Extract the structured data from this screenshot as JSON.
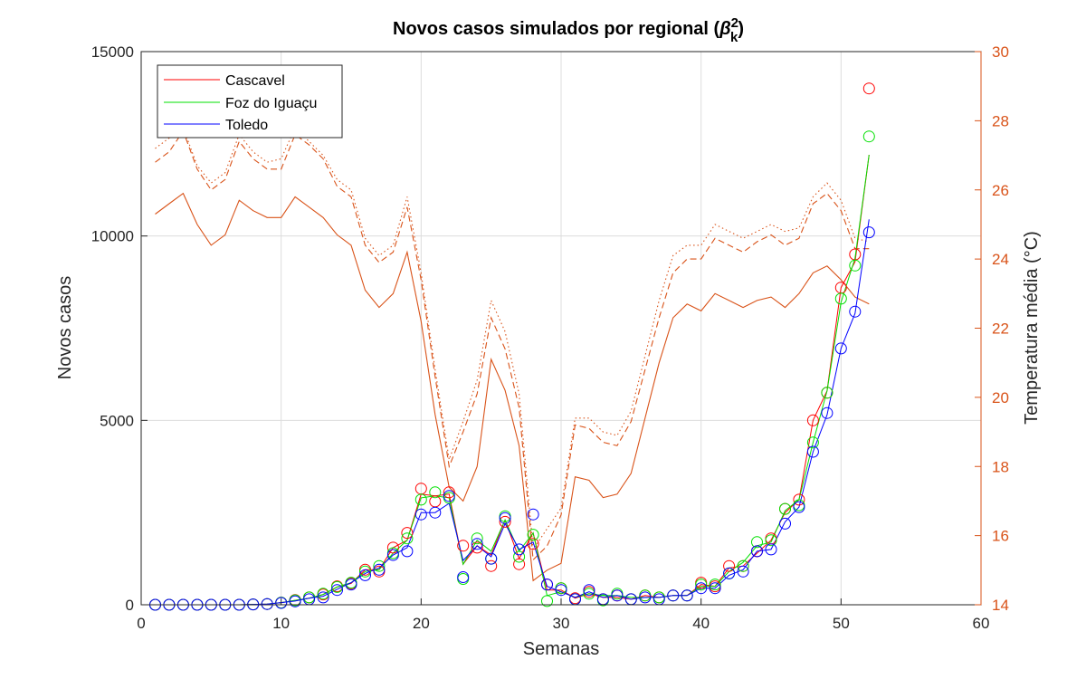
{
  "chart_data": {
    "type": "line",
    "title": "Novos casos simulados por regional (",
    "title_beta": "β",
    "title_sup": "2",
    "title_sub": "k",
    "title_end": ")",
    "xlabel": "Semanas",
    "ylabel": "Novos casos",
    "y2label": "Temperatura média (°C)",
    "xlim": [
      0,
      60
    ],
    "ylim": [
      0,
      15000
    ],
    "y2lim": [
      14,
      30
    ],
    "xticks": [
      0,
      10,
      20,
      30,
      40,
      50,
      60
    ],
    "yticks": [
      0,
      5000,
      10000,
      15000
    ],
    "y2ticks": [
      14,
      16,
      18,
      20,
      22,
      24,
      26,
      28,
      30
    ],
    "grid": true,
    "legend_position": "top-left",
    "temp_color": "#D95319",
    "weeks": [
      1,
      2,
      3,
      4,
      5,
      6,
      7,
      8,
      9,
      10,
      11,
      12,
      13,
      14,
      15,
      16,
      17,
      18,
      19,
      20,
      21,
      22,
      23,
      24,
      25,
      26,
      27,
      28,
      29,
      30,
      31,
      32,
      33,
      34,
      35,
      36,
      37,
      38,
      39,
      40,
      41,
      42,
      43,
      44,
      45,
      46,
      47,
      48,
      49,
      50,
      51,
      52
    ],
    "series": [
      {
        "name": "Cascavel",
        "color": "#ff0000",
        "values": [
          0,
          0,
          0,
          0,
          0,
          0,
          0,
          10,
          20,
          60,
          120,
          180,
          280,
          480,
          580,
          950,
          950,
          1550,
          1750,
          3000,
          2950,
          3000,
          1100,
          1600,
          1350,
          2300,
          1250,
          1950,
          400,
          400,
          180,
          300,
          200,
          200,
          150,
          250,
          200,
          250,
          250,
          550,
          500,
          1000,
          1050,
          1400,
          1750,
          2500,
          2850,
          5000,
          5800,
          8600,
          9300,
          12200
        ],
        "observed": [
          0,
          0,
          0,
          0,
          0,
          0,
          0,
          10,
          20,
          60,
          130,
          200,
          280,
          500,
          580,
          950,
          900,
          1550,
          1950,
          3150,
          2800,
          3050,
          1600,
          1550,
          1050,
          2250,
          1100,
          1650,
          550,
          450,
          180,
          350,
          150,
          250,
          150,
          250,
          200,
          250,
          250,
          600,
          500,
          1050,
          1050,
          1450,
          1800,
          2600,
          2850,
          5000,
          5750,
          8600,
          9500,
          14000
        ]
      },
      {
        "name": "Foz do Iguaçu",
        "color": "#00e000",
        "values": [
          0,
          0,
          0,
          0,
          0,
          0,
          0,
          10,
          20,
          60,
          120,
          180,
          280,
          480,
          600,
          900,
          950,
          1400,
          1750,
          2900,
          2950,
          2900,
          1100,
          1750,
          1450,
          2300,
          1450,
          1950,
          250,
          350,
          200,
          300,
          250,
          250,
          200,
          200,
          200,
          250,
          250,
          500,
          500,
          900,
          1150,
          1600,
          1700,
          2550,
          2850,
          4400,
          5800,
          8200,
          9400,
          12200
        ],
        "observed": [
          0,
          0,
          0,
          0,
          0,
          0,
          0,
          10,
          20,
          60,
          120,
          200,
          300,
          480,
          600,
          900,
          1050,
          1400,
          1800,
          2850,
          3050,
          2900,
          700,
          1800,
          1250,
          2400,
          1300,
          1900,
          100,
          450,
          150,
          300,
          120,
          300,
          150,
          250,
          200,
          250,
          250,
          550,
          550,
          850,
          1050,
          1700,
          1750,
          2600,
          2700,
          4400,
          5750,
          8300,
          9200,
          12700
        ]
      },
      {
        "name": "Toledo",
        "color": "#0000ff",
        "values": [
          0,
          0,
          0,
          0,
          0,
          0,
          0,
          10,
          20,
          60,
          100,
          180,
          230,
          420,
          600,
          850,
          1000,
          1350,
          1550,
          2500,
          2500,
          2750,
          1200,
          1600,
          1300,
          2200,
          1500,
          1700,
          500,
          350,
          200,
          350,
          200,
          250,
          150,
          200,
          200,
          250,
          250,
          450,
          450,
          800,
          950,
          1450,
          1500,
          2250,
          2650,
          4150,
          5150,
          6950,
          7900,
          10450
        ],
        "observed": [
          0,
          0,
          0,
          0,
          0,
          0,
          0,
          10,
          20,
          50,
          90,
          150,
          200,
          400,
          550,
          800,
          950,
          1350,
          1450,
          2450,
          2500,
          2950,
          750,
          1650,
          1250,
          2350,
          1500,
          2450,
          550,
          400,
          150,
          400,
          150,
          250,
          150,
          200,
          150,
          250,
          250,
          450,
          450,
          850,
          900,
          1450,
          1500,
          2200,
          2650,
          4150,
          5200,
          6950,
          7950,
          10100
        ]
      }
    ],
    "temperature_series": [
      {
        "style": "solid",
        "values": [
          25.3,
          25.6,
          25.9,
          25.0,
          24.4,
          24.7,
          25.7,
          25.4,
          25.2,
          25.2,
          25.8,
          25.5,
          25.2,
          24.7,
          24.4,
          23.1,
          22.6,
          23.0,
          24.2,
          22.2,
          19.5,
          17.4,
          17.0,
          18.0,
          21.1,
          20.2,
          18.6,
          14.7,
          15.0,
          15.2,
          17.7,
          17.6,
          17.1,
          17.2,
          17.8,
          19.4,
          21.0,
          22.3,
          22.7,
          22.5,
          23.0,
          22.8,
          22.6,
          22.8,
          22.9,
          22.6,
          23.0,
          23.6,
          23.8,
          23.4,
          22.9,
          22.7
        ]
      },
      {
        "style": "dashed",
        "values": [
          26.8,
          27.1,
          27.7,
          26.6,
          26.0,
          26.3,
          27.4,
          26.9,
          26.6,
          26.6,
          27.6,
          27.3,
          26.9,
          26.1,
          25.8,
          24.4,
          23.9,
          24.2,
          25.5,
          23.4,
          20.6,
          18.0,
          19.0,
          20.1,
          22.3,
          21.4,
          19.7,
          15.3,
          15.7,
          16.6,
          19.2,
          19.1,
          18.7,
          18.6,
          19.3,
          20.8,
          22.3,
          23.6,
          24.0,
          24.0,
          24.6,
          24.4,
          24.2,
          24.5,
          24.7,
          24.4,
          24.6,
          25.6,
          25.9,
          25.4,
          24.3,
          24.3
        ]
      },
      {
        "style": "dotted",
        "values": [
          27.2,
          27.5,
          27.8,
          26.7,
          26.2,
          26.5,
          27.6,
          27.1,
          26.8,
          26.9,
          27.8,
          27.4,
          27.0,
          26.3,
          26.0,
          24.6,
          24.1,
          24.4,
          25.8,
          23.6,
          20.8,
          18.2,
          19.3,
          20.5,
          22.8,
          21.9,
          20.1,
          15.6,
          16.2,
          16.8,
          19.4,
          19.4,
          19.0,
          18.9,
          19.6,
          21.2,
          22.8,
          24.1,
          24.4,
          24.4,
          25.0,
          24.8,
          24.6,
          24.8,
          25.0,
          24.8,
          24.9,
          25.8,
          26.2,
          25.7,
          24.6,
          24.5
        ]
      }
    ]
  }
}
